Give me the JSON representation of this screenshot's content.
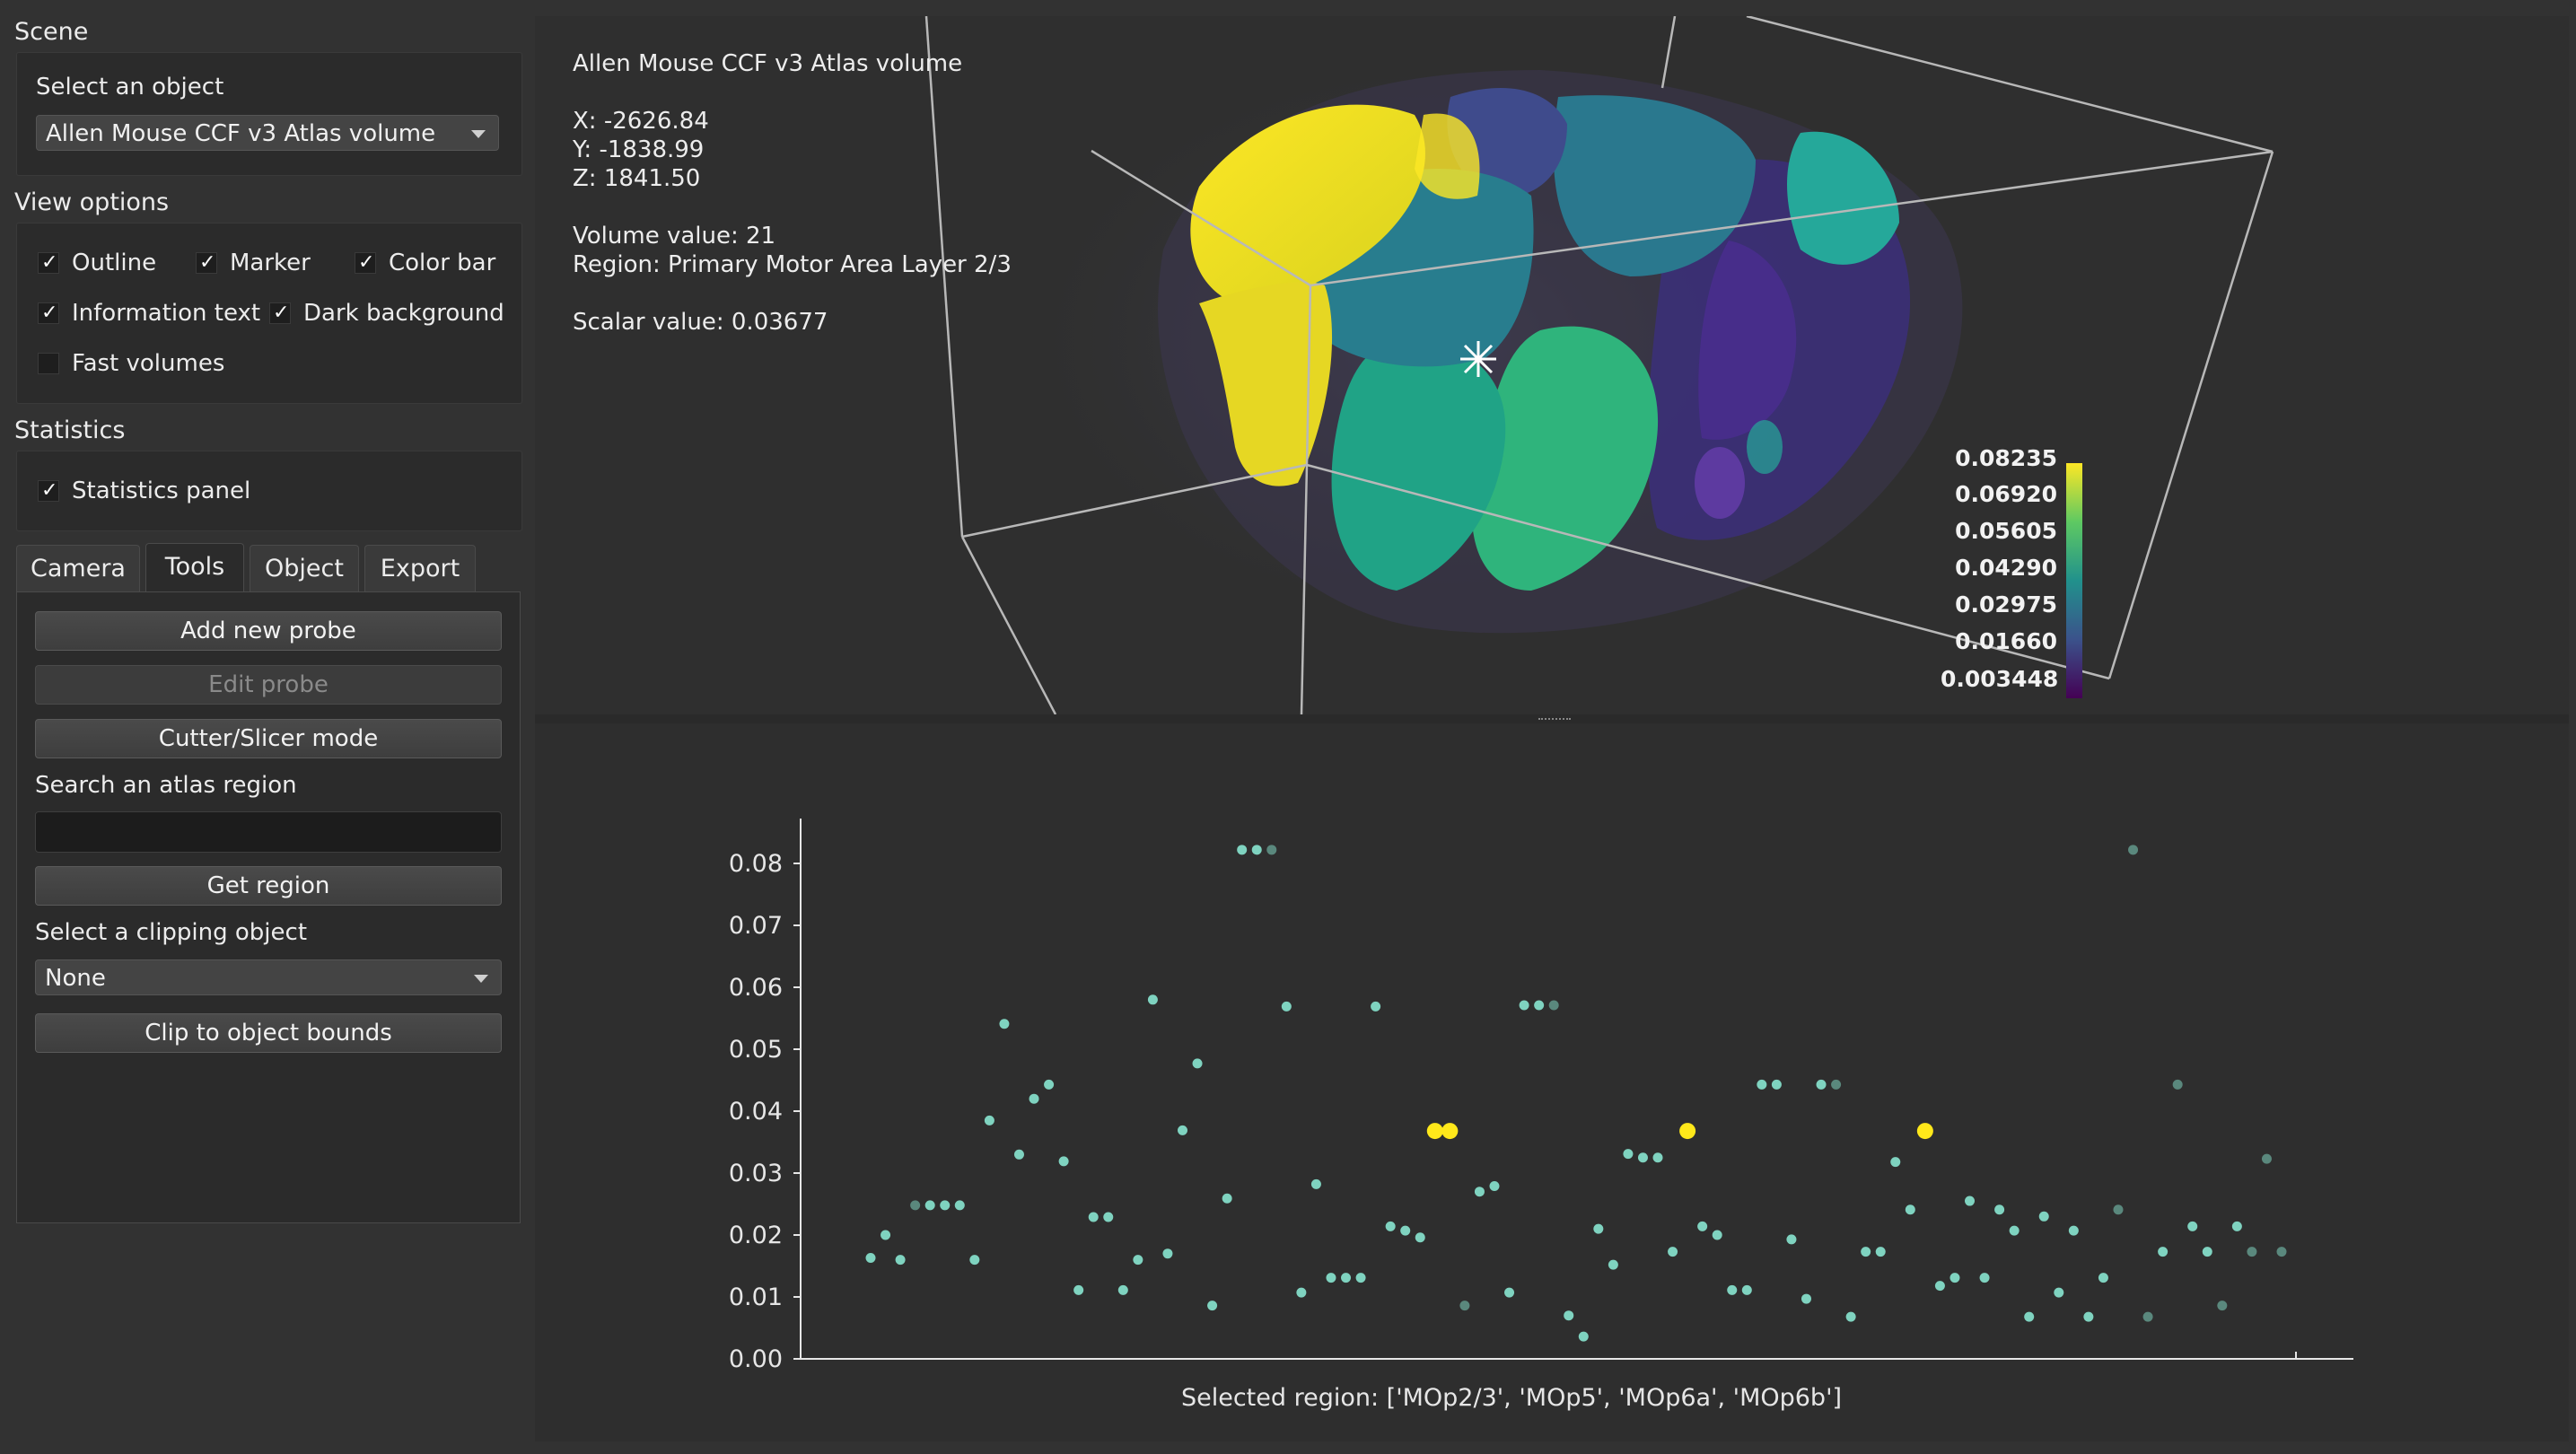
{
  "sidebar": {
    "scene_title": "Scene",
    "select_object_label": "Select an object",
    "selected_object": "Allen Mouse CCF v3 Atlas volume",
    "view_options_title": "View options",
    "view_options": [
      {
        "label": "Outline",
        "checked": true
      },
      {
        "label": "Marker",
        "checked": true
      },
      {
        "label": "Color bar",
        "checked": true
      },
      {
        "label": "Information text",
        "checked": true
      },
      {
        "label": "Dark background",
        "checked": true
      },
      {
        "label": "Fast volumes",
        "checked": false
      }
    ],
    "statistics_title": "Statistics",
    "statistics_panel": {
      "label": "Statistics panel",
      "checked": true
    },
    "tabs": [
      "Camera",
      "Tools",
      "Object",
      "Export"
    ],
    "active_tab": "Tools",
    "tools": {
      "add_probe": "Add new probe",
      "edit_probe": "Edit probe",
      "cutter_mode": "Cutter/Slicer mode",
      "search_label": "Search an atlas region",
      "search_value": "",
      "get_region": "Get region",
      "clip_label": "Select a clipping object",
      "clip_selected": "None",
      "clip_bounds": "Clip to object bounds"
    }
  },
  "viewer": {
    "title": "Allen Mouse CCF v3 Atlas volume",
    "x": "X: -2626.84",
    "y": "Y: -1838.99",
    "z": "Z: 1841.50",
    "volume_value": "Volume value: 21",
    "region": "Region: Primary Motor Area Layer 2/3",
    "scalar_value": "Scalar value: 0.03677",
    "colorbar": [
      "0.08235",
      "0.06920",
      "0.05605",
      "0.04290",
      "0.02975",
      "0.01660",
      "0.003448"
    ],
    "colors": {
      "high": "#fde725",
      "mid": "#21918c",
      "low": "#440154"
    }
  },
  "chart_data": {
    "type": "scatter",
    "xlabel": "Selected region: ['MOp2/3', 'MOp5', 'MOp6a', 'MOp6b']",
    "ylabel": "",
    "ylim": [
      0,
      0.085
    ],
    "yticks": [
      "0.00",
      "0.01",
      "0.02",
      "0.03",
      "0.04",
      "0.05",
      "0.06",
      "0.07",
      "0.08"
    ],
    "x_ticks": [],
    "point_color": "#7fd3c0",
    "highlight_color": "#ffe81a",
    "points": [
      [
        1,
        0.0163,
        1
      ],
      [
        2,
        0.02,
        1
      ],
      [
        3,
        0.016,
        1
      ],
      [
        4,
        0.0248,
        0.55
      ],
      [
        5,
        0.0248,
        1
      ],
      [
        6,
        0.0248,
        1
      ],
      [
        7,
        0.0248,
        1
      ],
      [
        8,
        0.016,
        1
      ],
      [
        9,
        0.0385,
        1
      ],
      [
        10,
        0.0541,
        1
      ],
      [
        11,
        0.033,
        1
      ],
      [
        12,
        0.042,
        1
      ],
      [
        13,
        0.0443,
        1
      ],
      [
        14,
        0.0319,
        1
      ],
      [
        15,
        0.0111,
        1
      ],
      [
        16,
        0.0229,
        1
      ],
      [
        17,
        0.0229,
        1
      ],
      [
        18,
        0.0111,
        1
      ],
      [
        19,
        0.016,
        1
      ],
      [
        20,
        0.058,
        1
      ],
      [
        21,
        0.017,
        1
      ],
      [
        22,
        0.0369,
        1
      ],
      [
        23,
        0.0477,
        1
      ],
      [
        24,
        0.0086,
        1
      ],
      [
        25,
        0.0259,
        1
      ],
      [
        26,
        0.0822,
        1
      ],
      [
        27,
        0.0822,
        1
      ],
      [
        28,
        0.0822,
        0.55
      ],
      [
        29,
        0.0569,
        1
      ],
      [
        30,
        0.0107,
        1
      ],
      [
        31,
        0.0282,
        1
      ],
      [
        32,
        0.0131,
        1
      ],
      [
        33,
        0.0131,
        1
      ],
      [
        34,
        0.0131,
        1
      ],
      [
        35,
        0.0569,
        1
      ],
      [
        36,
        0.0214,
        1
      ],
      [
        37,
        0.0207,
        1
      ],
      [
        38,
        0.0196,
        1
      ],
      [
        39,
        0.0368,
        1,
        "hi"
      ],
      [
        40,
        0.0368,
        1,
        "hi"
      ],
      [
        41,
        0.0086,
        0.55
      ],
      [
        42,
        0.027,
        1
      ],
      [
        43,
        0.0279,
        1
      ],
      [
        44,
        0.0107,
        1
      ],
      [
        45,
        0.0571,
        1
      ],
      [
        46,
        0.0571,
        1
      ],
      [
        47,
        0.0571,
        0.55
      ],
      [
        48,
        0.007,
        1
      ],
      [
        49,
        0.0036,
        1
      ],
      [
        50,
        0.021,
        1
      ],
      [
        51,
        0.0152,
        1
      ],
      [
        52,
        0.0331,
        1
      ],
      [
        53,
        0.0325,
        1
      ],
      [
        54,
        0.0325,
        1
      ],
      [
        55,
        0.0173,
        1
      ],
      [
        56,
        0.0368,
        1,
        "hi"
      ],
      [
        57,
        0.0214,
        1
      ],
      [
        58,
        0.02,
        1
      ],
      [
        59,
        0.0111,
        1
      ],
      [
        60,
        0.0111,
        1
      ],
      [
        61,
        0.0443,
        1
      ],
      [
        62,
        0.0443,
        1
      ],
      [
        63,
        0.0193,
        1
      ],
      [
        64,
        0.0097,
        1
      ],
      [
        65,
        0.0443,
        1
      ],
      [
        66,
        0.0443,
        0.55
      ],
      [
        67,
        0.0068,
        1
      ],
      [
        68,
        0.0173,
        1
      ],
      [
        69,
        0.0173,
        1
      ],
      [
        70,
        0.0318,
        1
      ],
      [
        71,
        0.0241,
        1
      ],
      [
        72,
        0.0368,
        1,
        "hi"
      ],
      [
        73,
        0.0118,
        1
      ],
      [
        74,
        0.0131,
        1
      ],
      [
        75,
        0.0255,
        1
      ],
      [
        76,
        0.0131,
        1
      ],
      [
        77,
        0.0241,
        1
      ],
      [
        78,
        0.0207,
        1
      ],
      [
        79,
        0.0068,
        1
      ],
      [
        80,
        0.023,
        1
      ],
      [
        81,
        0.0107,
        1
      ],
      [
        82,
        0.0207,
        1
      ],
      [
        83,
        0.0068,
        1
      ],
      [
        84,
        0.0131,
        1
      ],
      [
        85,
        0.0241,
        0.55
      ],
      [
        86,
        0.0822,
        0.55
      ],
      [
        87,
        0.0068,
        0.55
      ],
      [
        88,
        0.0173,
        1
      ],
      [
        89,
        0.0443,
        0.55
      ],
      [
        90,
        0.0214,
        1
      ],
      [
        91,
        0.0173,
        1
      ],
      [
        92,
        0.0086,
        0.55
      ],
      [
        93,
        0.0214,
        1
      ],
      [
        94,
        0.0173,
        0.55
      ],
      [
        95,
        0.0323,
        0.55
      ],
      [
        96,
        0.0173,
        0.55
      ]
    ]
  }
}
